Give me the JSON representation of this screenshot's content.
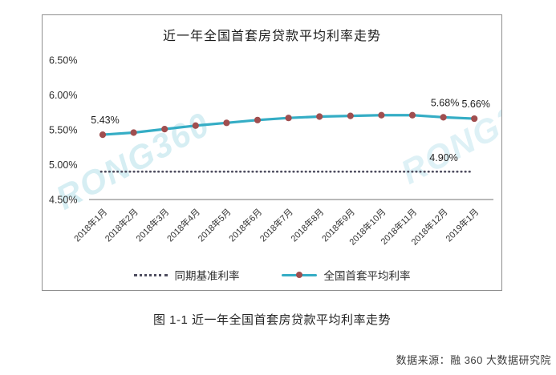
{
  "page": {
    "caption": "图 1-1 近一年全国首套房贷款平均利率走势",
    "source": "数据来源：融 360 大数据研究院",
    "watermark": "RONG360"
  },
  "chart_data": {
    "type": "line",
    "title": "近一年全国首套房贷款平均利率走势",
    "categories": [
      "2018年1月",
      "2018年2月",
      "2018年3月",
      "2018年4月",
      "2018年5月",
      "2018年6月",
      "2018年7月",
      "2018年8月",
      "2018年9月",
      "2018年10月",
      "2018年11月",
      "2018年12月",
      "2019年1月"
    ],
    "series": [
      {
        "name": "同期基准利率",
        "style": "dotted",
        "color": "#4E4D5F",
        "constant_value": 4.9
      },
      {
        "name": "全国首套平均利率",
        "style": "solid",
        "color": "#35ADC5",
        "marker_color": "#A04E4F",
        "values": [
          5.43,
          5.46,
          5.51,
          5.56,
          5.6,
          5.64,
          5.67,
          5.69,
          5.7,
          5.71,
          5.71,
          5.68,
          5.66
        ]
      }
    ],
    "annotations": [
      {
        "text": "5.43%",
        "point": 0
      },
      {
        "text": "5.68%",
        "point": 11
      },
      {
        "text": "5.66%",
        "point": 12
      },
      {
        "text": "4.90%",
        "baseline": true
      }
    ],
    "y_tick_labels": [
      "6.50%",
      "6.00%",
      "5.50%",
      "5.00%",
      "4.50%"
    ],
    "ylim": [
      4.5,
      6.5
    ],
    "y_tick_step": 0.5,
    "xlabel": "",
    "ylabel": "",
    "grid": false,
    "legend_position": "bottom"
  }
}
